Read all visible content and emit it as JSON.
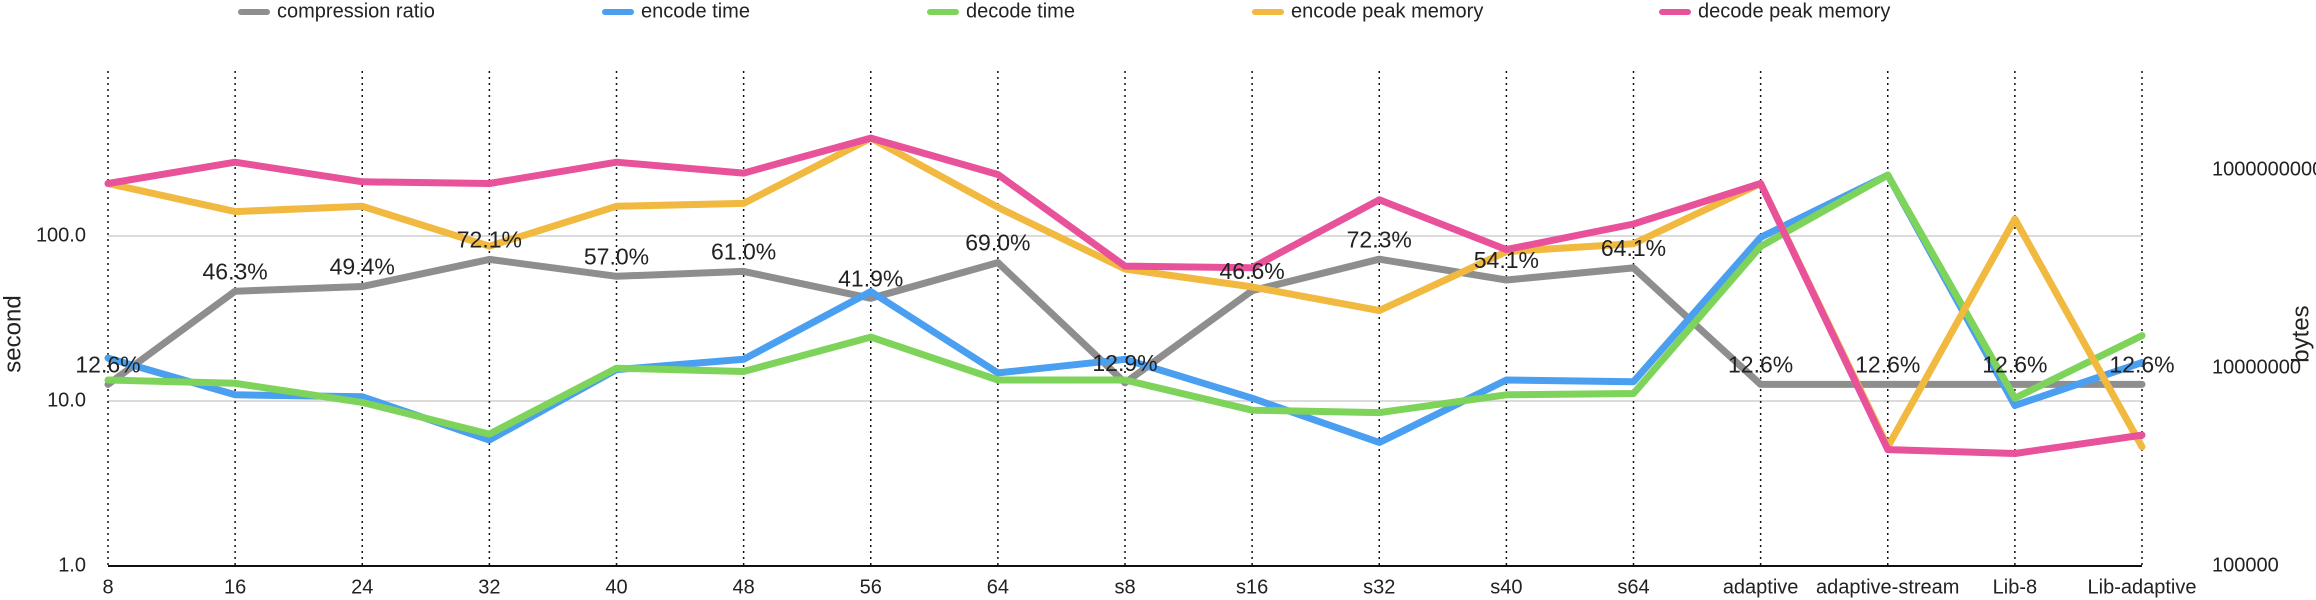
{
  "chart_data": {
    "type": "line",
    "y_label": "second",
    "y2_label": "bytes",
    "log_y": true,
    "log_y2": true,
    "legend": "top",
    "grid": true,
    "categories": [
      "8",
      "16",
      "24",
      "32",
      "40",
      "48",
      "56",
      "64",
      "s8",
      "s16",
      "s32",
      "s40",
      "s64",
      "adaptive",
      "adaptive-stream",
      "Lib-8",
      "Lib-adaptive"
    ],
    "ylim": [
      1,
      1000
    ],
    "yticks": [
      {
        "value": 1,
        "label": "1.0"
      },
      {
        "value": 10,
        "label": "10.0"
      },
      {
        "value": 100,
        "label": "100.0"
      }
    ],
    "y2lim": [
      100000,
      10000000000
    ],
    "y2ticks": [
      100000,
      10000000,
      1000000000
    ],
    "series": [
      {
        "name": "compression ratio",
        "color": "#8e8e8e",
        "values": [
          12.6,
          46.3,
          49.4,
          72.1,
          57.0,
          61.0,
          41.9,
          69.0,
          12.9,
          46.6,
          72.3,
          54.1,
          64.1,
          12.6,
          12.6,
          12.6,
          12.6
        ],
        "value_labels": [
          "12.6%",
          "46.3%",
          "49.4%",
          "72.1%",
          "57.0%",
          "61.0%",
          "41.9%",
          "69.0%",
          "12.9%",
          "46.6%",
          "72.3%",
          "54.1%",
          "64.1%",
          "12.6%",
          "12.6%",
          "12.6%",
          "12.6%"
        ]
      },
      {
        "name": "encode time",
        "color": "#4a9ff0",
        "values": [
          18.2,
          10.9,
          10.6,
          5.8,
          15.5,
          17.9,
          46,
          14.8,
          17.9,
          10.4,
          5.6,
          13.4,
          13.1,
          98,
          234,
          9.4,
          17.1
        ]
      },
      {
        "name": "decode time",
        "color": "#7ed35a",
        "values": [
          13.4,
          12.8,
          9.8,
          6.3,
          15.8,
          15.1,
          24.4,
          13.4,
          13.4,
          8.8,
          8.5,
          10.9,
          11.1,
          86.5,
          234,
          10.4,
          24.9
        ]
      },
      {
        "name": "encode peak memory",
        "color": "#f1b93f",
        "axis": "y2",
        "values": [
          730000000,
          380000000,
          430000000,
          170000000,
          430000000,
          460000000,
          2100000000,
          420000000,
          100000000,
          66000000,
          38000000,
          150000000,
          180000000,
          730000000,
          1600000,
          320000000,
          1600000
        ]
      },
      {
        "name": "decode peak memory",
        "color": "#e8529a",
        "axis": "y2",
        "values": [
          730000000,
          1200000000,
          760000000,
          730000000,
          1200000000,
          930000000,
          2100000000,
          900000000,
          107000000,
          103000000,
          500000000,
          157000000,
          285000000,
          730000000,
          1500000,
          1370000,
          2100000
        ]
      }
    ]
  }
}
